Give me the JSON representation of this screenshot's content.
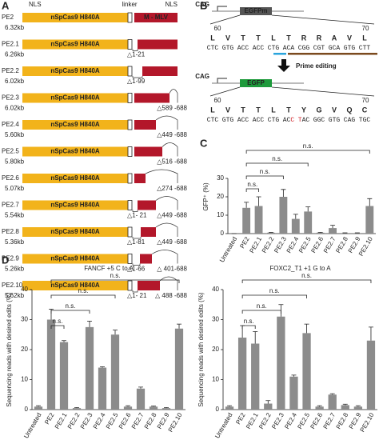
{
  "panels": [
    "A",
    "B",
    "C",
    "D"
  ],
  "panel_a": {
    "labels": [
      "NLS",
      "linker",
      "NLS"
    ],
    "constructs": [
      {
        "name": "PE2",
        "size": "6.32kb",
        "cas9": "nSpCas9 H840A",
        "rt": "M - MLV"
      },
      {
        "name": "PE2.1",
        "size": "6.26kb",
        "cas9": "nSpCas9 H840A",
        "n_deletion": "△1-21"
      },
      {
        "name": "PE2.2",
        "size": "6.02kb",
        "cas9": "nSpCas9 H840A",
        "n_deletion": "△1-99"
      },
      {
        "name": "PE2.3",
        "size": "6.02kb",
        "cas9": "nSpCas9 H840A",
        "c_deletion": "△589 -688"
      },
      {
        "name": "PE2.4",
        "size": "5.60kb",
        "cas9": "nSpCas9 H840A",
        "c_deletion": "△449 -688"
      },
      {
        "name": "PE2.5",
        "size": "5.80kb",
        "cas9": "nSpCas9 H840A",
        "c_deletion": "△516 -688"
      },
      {
        "name": "PE2.6",
        "size": "5.07kb",
        "cas9": "nSpCas9 H840A",
        "c_deletion": "△274 -688"
      },
      {
        "name": "PE2.7",
        "size": "5.54kb",
        "cas9": "nSpCas9 H840A",
        "n_deletion": "△1- 21",
        "c_deletion": "△449 -688"
      },
      {
        "name": "PE2.8",
        "size": "5.36kb",
        "cas9": "nSpCas9 H840A",
        "n_deletion": "△1-81",
        "c_deletion": "△449 -688"
      },
      {
        "name": "PE2.9",
        "size": "5.26kb",
        "cas9": "nSpCas9 H840A",
        "n_deletion": "△1-66",
        "c_deletion": "△ 401-688"
      },
      {
        "name": "PE2.10",
        "size": "5.62kb",
        "cas9": "nSpCas9 H840A",
        "n_deletion": "△1- 21",
        "c_deletion": "△ 488 -688"
      }
    ]
  },
  "panel_b": {
    "arrow": "Prime editing",
    "before": {
      "promoter": "CAG",
      "gene": "EGFPm",
      "start": 60,
      "end": 70,
      "aa": [
        {
          "t": "L",
          "color": "#1e9a3c"
        },
        {
          "t": "V",
          "color": "#1e9a3c"
        },
        {
          "t": "T",
          "color": "#1e9a3c"
        },
        {
          "t": "T",
          "color": "#1e9a3c"
        },
        {
          "t": "L",
          "color": "#1e9a3c"
        },
        {
          "t": "T",
          "color": "#1e9a3c"
        },
        {
          "t": "R",
          "color": "#222222"
        },
        {
          "t": "R",
          "color": "#222222"
        },
        {
          "t": "A",
          "color": "#222222"
        },
        {
          "t": "V",
          "color": "#222222"
        },
        {
          "t": "L",
          "color": "#222222"
        }
      ],
      "dna": [
        "CTC",
        "GTG",
        "ACC",
        "ACC",
        "CTG",
        "ACA",
        "CGG",
        "CGT",
        "GCA",
        "GTG",
        "CTT"
      ]
    },
    "after": {
      "promoter": "CAG",
      "gene": "EGFP",
      "start": 60,
      "end": 70,
      "aa": [
        {
          "t": "L",
          "color": "#1e9a3c"
        },
        {
          "t": "V",
          "color": "#1e9a3c"
        },
        {
          "t": "T",
          "color": "#1e9a3c"
        },
        {
          "t": "T",
          "color": "#1e9a3c"
        },
        {
          "t": "L",
          "color": "#1e9a3c"
        },
        {
          "t": "T",
          "color": "#1e9a3c"
        },
        {
          "t": "Y",
          "color": "#1e9a3c"
        },
        {
          "t": "G",
          "color": "#1e9a3c"
        },
        {
          "t": "V",
          "color": "#1e9a3c"
        },
        {
          "t": "Q",
          "color": "#1e9a3c"
        },
        {
          "t": "C",
          "color": "#1e9a3c"
        }
      ],
      "dna": [
        "CTC",
        "GTG",
        "ACC",
        "ACC",
        "CTG",
        [
          {
            "t": "AC",
            "color": "#222222"
          },
          {
            "t": "C",
            "color": "#d2232a"
          }
        ],
        [
          {
            "t": "T",
            "color": "#d2232a"
          },
          {
            "t": "AC",
            "color": "#222222"
          }
        ],
        "GGC",
        "GTG",
        "CAG",
        "TGC"
      ]
    }
  },
  "chart_data": [
    {
      "type": "bar",
      "ylabel": "GFP⁺ (%)",
      "color": "#8c8c8c",
      "categories": [
        "Untreated",
        "PE2",
        "PE2.1",
        "PE2.2",
        "PE2.3",
        "PE2.4",
        "PE2.5",
        "PE2.6",
        "PE2.7",
        "PE2.8",
        "PE2.9",
        "PE2.10"
      ],
      "values": [
        0,
        14,
        15,
        0.5,
        20,
        8,
        12,
        0.5,
        3,
        0.3,
        0.3,
        15
      ],
      "errors": [
        0,
        3,
        5,
        0.2,
        4,
        2.5,
        2.5,
        0.2,
        1.5,
        0.1,
        0.1,
        4
      ],
      "ylim": [
        0,
        40
      ],
      "yticks": [
        0,
        10,
        20,
        30
      ],
      "brackets": [
        {
          "from": "PE2",
          "to": "PE2.10",
          "label": "n.s."
        },
        {
          "from": "PE2",
          "to": "PE2.5",
          "label": "n.s."
        },
        {
          "from": "PE2",
          "to": "PE2.3",
          "label": "n.s."
        },
        {
          "from": "PE2",
          "to": "PE2.1",
          "label": "n.s."
        }
      ]
    },
    {
      "type": "bar",
      "title": "FANCF +5 C to A",
      "ylabel": "Sequencing reads with desired edits (%)",
      "color": "#8c8c8c",
      "categories": [
        "Untreated",
        "PE2",
        "PE2.1",
        "PE2.2",
        "PE2.3",
        "PE2.4",
        "PE2.5",
        "PE2.6",
        "PE2.7",
        "PE2.8",
        "PE2.9",
        "PE2.10"
      ],
      "values": [
        1,
        30,
        22.5,
        0.5,
        27.5,
        14,
        25,
        1,
        7,
        1,
        0.5,
        27
      ],
      "errors": [
        0.3,
        3.5,
        0.5,
        0.2,
        2,
        0.3,
        1.5,
        0.3,
        0.5,
        0.2,
        0.2,
        1.5
      ],
      "ylim": [
        0,
        40
      ],
      "yticks": [
        0,
        10,
        20,
        30,
        40
      ],
      "brackets": [
        {
          "from": "PE2",
          "to": "PE2.10",
          "label": "n.s."
        },
        {
          "from": "PE2",
          "to": "PE2.5",
          "label": "n.s."
        },
        {
          "from": "PE2",
          "to": "PE2.3",
          "label": "n.s."
        },
        {
          "from": "PE2",
          "to": "PE2.1",
          "label": "n.s."
        }
      ]
    },
    {
      "type": "bar",
      "title": "FOXC2_T1 +1 G to A",
      "ylabel": "Sequencing reads with desired edits (%)",
      "color": "#8c8c8c",
      "categories": [
        "Untreated",
        "PE2",
        "PE2.1",
        "PE2.2",
        "PE2.3",
        "PE2.4",
        "PE2.5",
        "PE2.6",
        "PE2.7",
        "PE2.8",
        "PE2.9",
        "PE2.10"
      ],
      "values": [
        1,
        24,
        22,
        2,
        31,
        11,
        25.5,
        1,
        5,
        1.5,
        1,
        23
      ],
      "errors": [
        0.3,
        4,
        4,
        1,
        4,
        0.5,
        3,
        0.3,
        0.3,
        0.3,
        0.3,
        4.5
      ],
      "ylim": [
        0,
        40
      ],
      "yticks": [
        0,
        10,
        20,
        30,
        40
      ],
      "brackets": [
        {
          "from": "PE2",
          "to": "PE2.10",
          "label": "n.s."
        },
        {
          "from": "PE2",
          "to": "PE2.5",
          "label": "n.s."
        },
        {
          "from": "PE2",
          "to": "PE2.3",
          "label": "n.s."
        },
        {
          "from": "PE2",
          "to": "PE2.1",
          "label": "n.s."
        }
      ]
    }
  ]
}
